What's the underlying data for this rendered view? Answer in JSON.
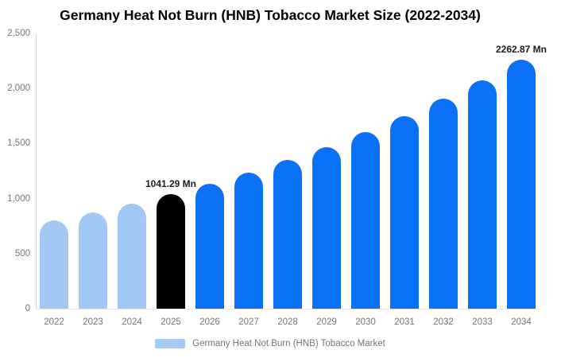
{
  "title": "Germany Heat Not Burn (HNB) Tobacco Market Size (2022-2034)",
  "legend": {
    "label": "Germany Heat Not Burn (HNB) Tobacco Market"
  },
  "colors": {
    "historical": "#a2c9f6",
    "highlight": "#000000",
    "forecast": "#0a70f6",
    "axis_line": "#d8d8d8",
    "tick_text": "#757575",
    "data_label_text": "#1a1a1a"
  },
  "y_axis": {
    "tick_labels": [
      "0",
      "500",
      "1,000",
      "1,500",
      "2,000",
      "2,500"
    ],
    "tick_values": [
      0,
      500,
      1000,
      1500,
      2000,
      2500
    ]
  },
  "chart_data": {
    "type": "bar",
    "title": "Germany Heat Not Burn (HNB) Tobacco Market Size (2022-2034)",
    "unit": "Mn",
    "xlabel": "",
    "ylabel": "",
    "ylim": [
      0,
      2500
    ],
    "grid": false,
    "legend_position": "bottom",
    "categories": [
      "2022",
      "2023",
      "2024",
      "2025",
      "2026",
      "2027",
      "2028",
      "2029",
      "2030",
      "2031",
      "2032",
      "2033",
      "2034"
    ],
    "values": [
      803.8,
      876.2,
      955.1,
      1041.29,
      1135.1,
      1237.4,
      1348.9,
      1470.4,
      1602.9,
      1747.3,
      1904.7,
      2076.3,
      2262.87
    ],
    "bar_roles": [
      "historical",
      "historical",
      "historical",
      "highlight",
      "forecast",
      "forecast",
      "forecast",
      "forecast",
      "forecast",
      "forecast",
      "forecast",
      "forecast",
      "forecast"
    ],
    "data_labels": [
      null,
      null,
      null,
      "1041.29 Mn",
      null,
      null,
      null,
      null,
      null,
      null,
      null,
      null,
      "2262.87 Mn"
    ]
  }
}
